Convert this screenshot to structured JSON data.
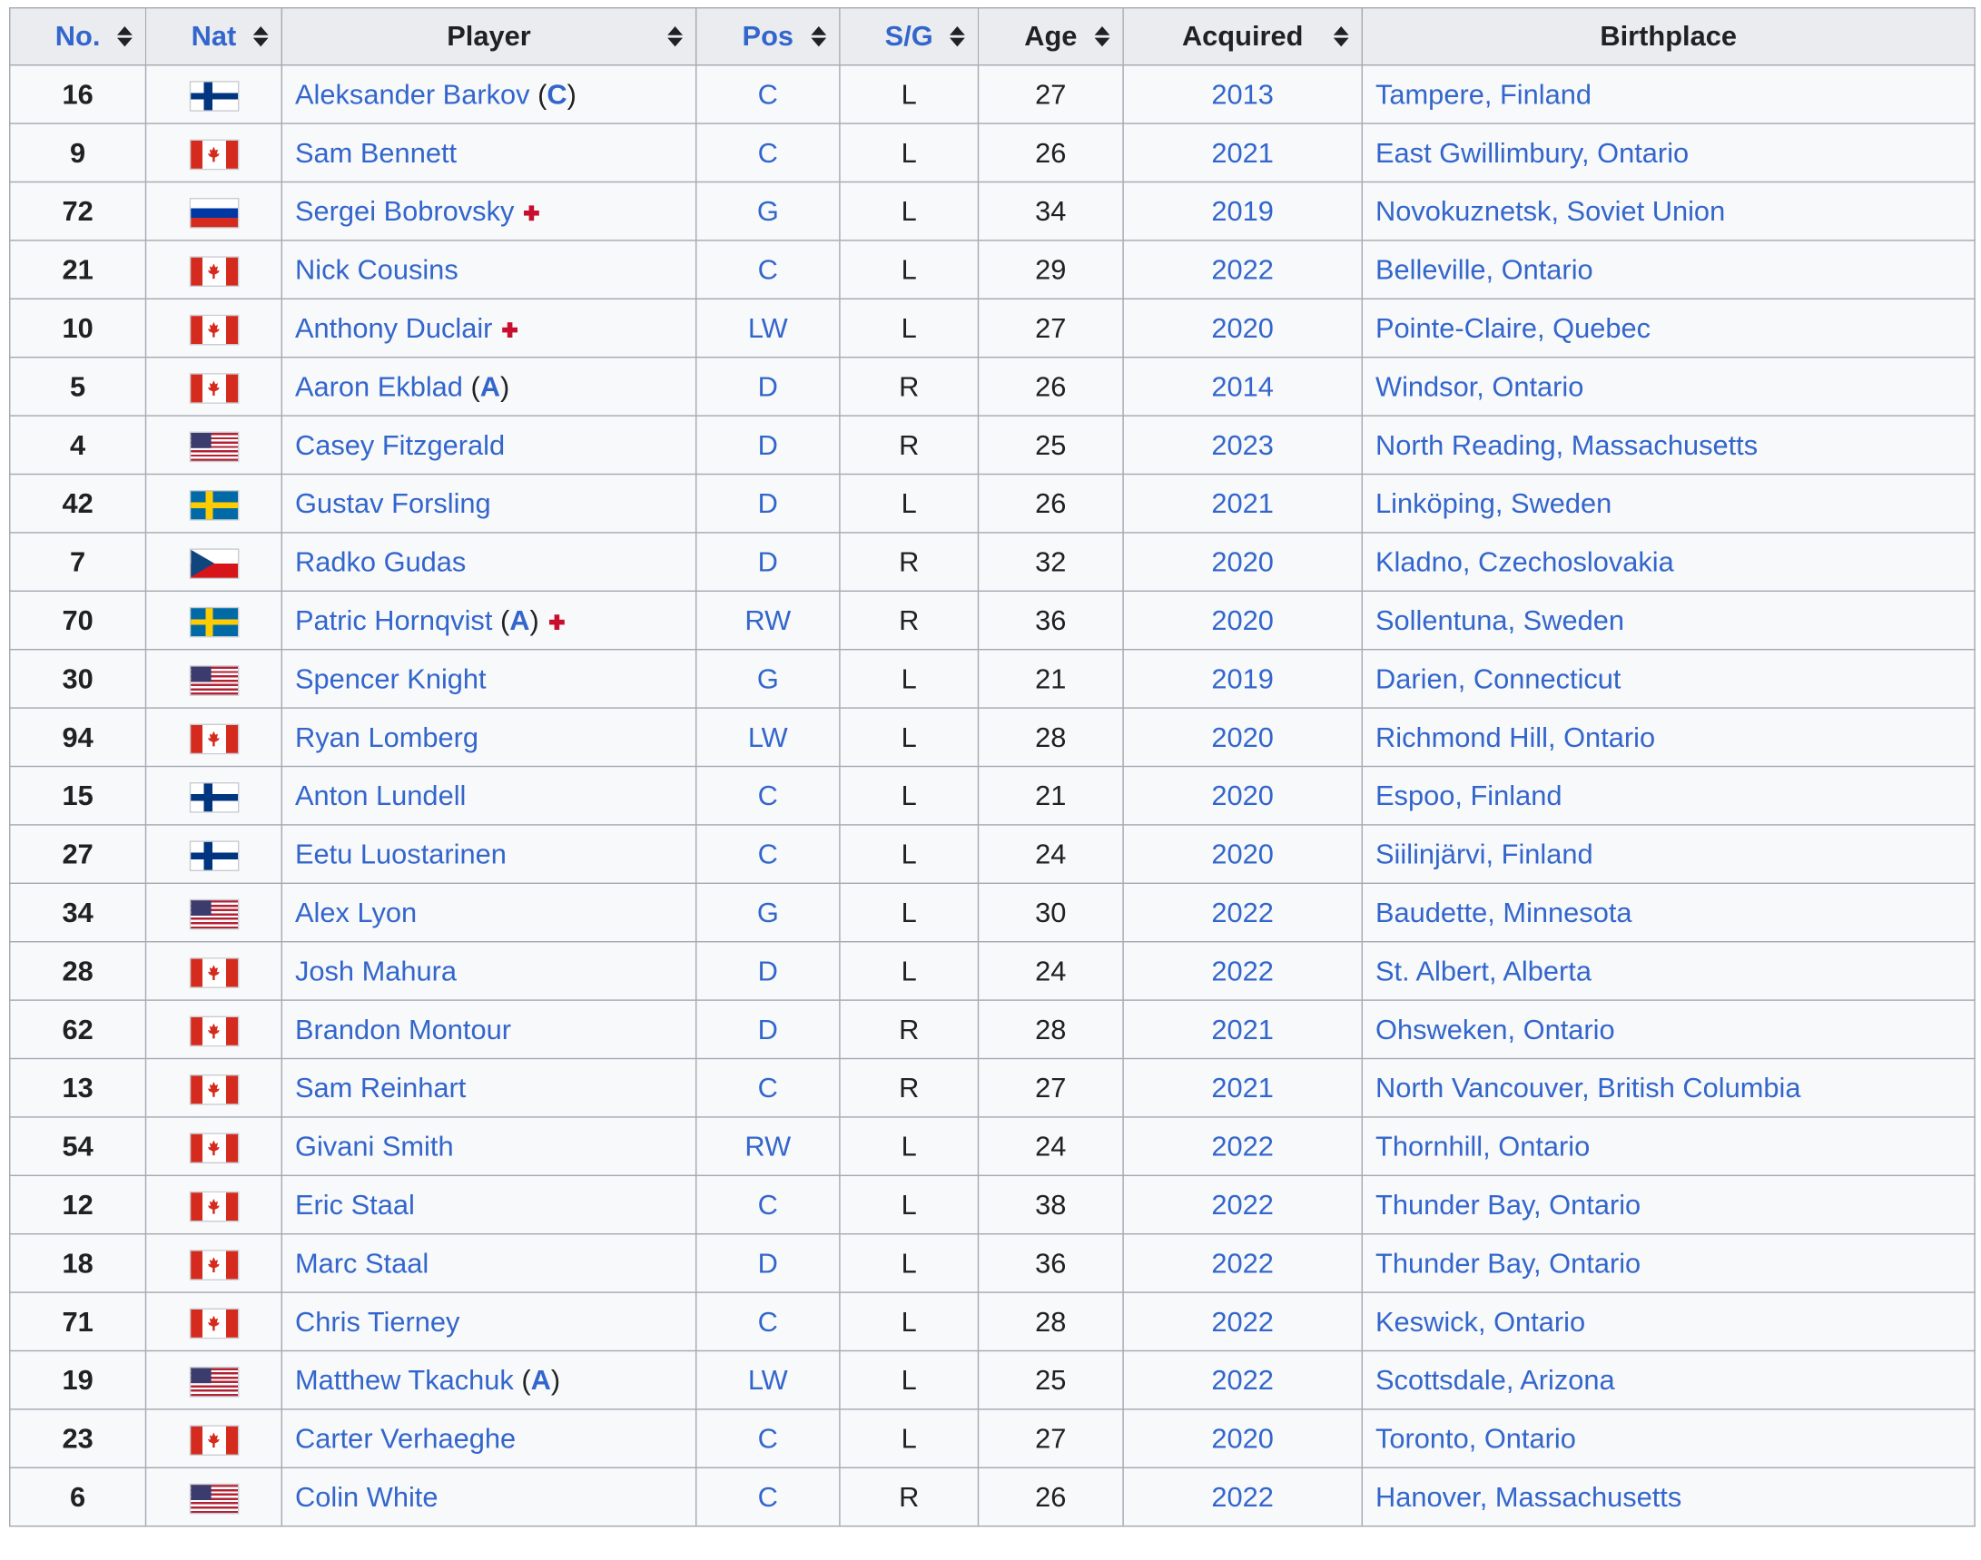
{
  "table": {
    "headers": {
      "no": "No.",
      "nat": "Nat",
      "player": "Player",
      "pos": "Pos",
      "sg": "S/G",
      "age": "Age",
      "acquired": "Acquired",
      "birthplace": "Birthplace"
    },
    "rows": [
      {
        "no": "16",
        "nat": "finland",
        "player": "Aleksander Barkov",
        "role": "C",
        "injured": false,
        "pos": "C",
        "sg": "L",
        "age": "27",
        "acquired": "2013",
        "birthplace": "Tampere, Finland"
      },
      {
        "no": "9",
        "nat": "canada",
        "player": "Sam Bennett",
        "role": "",
        "injured": false,
        "pos": "C",
        "sg": "L",
        "age": "26",
        "acquired": "2021",
        "birthplace": "East Gwillimbury, Ontario"
      },
      {
        "no": "72",
        "nat": "russia",
        "player": "Sergei Bobrovsky",
        "role": "",
        "injured": true,
        "pos": "G",
        "sg": "L",
        "age": "34",
        "acquired": "2019",
        "birthplace": "Novokuznetsk, Soviet Union"
      },
      {
        "no": "21",
        "nat": "canada",
        "player": "Nick Cousins",
        "role": "",
        "injured": false,
        "pos": "C",
        "sg": "L",
        "age": "29",
        "acquired": "2022",
        "birthplace": "Belleville, Ontario"
      },
      {
        "no": "10",
        "nat": "canada",
        "player": "Anthony Duclair",
        "role": "",
        "injured": true,
        "pos": "LW",
        "sg": "L",
        "age": "27",
        "acquired": "2020",
        "birthplace": "Pointe-Claire, Quebec"
      },
      {
        "no": "5",
        "nat": "canada",
        "player": "Aaron Ekblad",
        "role": "A",
        "injured": false,
        "pos": "D",
        "sg": "R",
        "age": "26",
        "acquired": "2014",
        "birthplace": "Windsor, Ontario"
      },
      {
        "no": "4",
        "nat": "usa",
        "player": "Casey Fitzgerald",
        "role": "",
        "injured": false,
        "pos": "D",
        "sg": "R",
        "age": "25",
        "acquired": "2023",
        "birthplace": "North Reading, Massachusetts"
      },
      {
        "no": "42",
        "nat": "sweden",
        "player": "Gustav Forsling",
        "role": "",
        "injured": false,
        "pos": "D",
        "sg": "L",
        "age": "26",
        "acquired": "2021",
        "birthplace": "Linköping, Sweden"
      },
      {
        "no": "7",
        "nat": "czech",
        "player": "Radko Gudas",
        "role": "",
        "injured": false,
        "pos": "D",
        "sg": "R",
        "age": "32",
        "acquired": "2020",
        "birthplace": "Kladno, Czechoslovakia"
      },
      {
        "no": "70",
        "nat": "sweden",
        "player": "Patric Hornqvist",
        "role": "A",
        "injured": true,
        "pos": "RW",
        "sg": "R",
        "age": "36",
        "acquired": "2020",
        "birthplace": "Sollentuna, Sweden"
      },
      {
        "no": "30",
        "nat": "usa",
        "player": "Spencer Knight",
        "role": "",
        "injured": false,
        "pos": "G",
        "sg": "L",
        "age": "21",
        "acquired": "2019",
        "birthplace": "Darien, Connecticut"
      },
      {
        "no": "94",
        "nat": "canada",
        "player": "Ryan Lomberg",
        "role": "",
        "injured": false,
        "pos": "LW",
        "sg": "L",
        "age": "28",
        "acquired": "2020",
        "birthplace": "Richmond Hill, Ontario"
      },
      {
        "no": "15",
        "nat": "finland",
        "player": "Anton Lundell",
        "role": "",
        "injured": false,
        "pos": "C",
        "sg": "L",
        "age": "21",
        "acquired": "2020",
        "birthplace": "Espoo, Finland"
      },
      {
        "no": "27",
        "nat": "finland",
        "player": "Eetu Luostarinen",
        "role": "",
        "injured": false,
        "pos": "C",
        "sg": "L",
        "age": "24",
        "acquired": "2020",
        "birthplace": "Siilinjärvi, Finland"
      },
      {
        "no": "34",
        "nat": "usa",
        "player": "Alex Lyon",
        "role": "",
        "injured": false,
        "pos": "G",
        "sg": "L",
        "age": "30",
        "acquired": "2022",
        "birthplace": "Baudette, Minnesota"
      },
      {
        "no": "28",
        "nat": "canada",
        "player": "Josh Mahura",
        "role": "",
        "injured": false,
        "pos": "D",
        "sg": "L",
        "age": "24",
        "acquired": "2022",
        "birthplace": "St. Albert, Alberta"
      },
      {
        "no": "62",
        "nat": "canada",
        "player": "Brandon Montour",
        "role": "",
        "injured": false,
        "pos": "D",
        "sg": "R",
        "age": "28",
        "acquired": "2021",
        "birthplace": "Ohsweken, Ontario"
      },
      {
        "no": "13",
        "nat": "canada",
        "player": "Sam Reinhart",
        "role": "",
        "injured": false,
        "pos": "C",
        "sg": "R",
        "age": "27",
        "acquired": "2021",
        "birthplace": "North Vancouver, British Columbia"
      },
      {
        "no": "54",
        "nat": "canada",
        "player": "Givani Smith",
        "role": "",
        "injured": false,
        "pos": "RW",
        "sg": "L",
        "age": "24",
        "acquired": "2022",
        "birthplace": "Thornhill, Ontario"
      },
      {
        "no": "12",
        "nat": "canada",
        "player": "Eric Staal",
        "role": "",
        "injured": false,
        "pos": "C",
        "sg": "L",
        "age": "38",
        "acquired": "2022",
        "birthplace": "Thunder Bay, Ontario"
      },
      {
        "no": "18",
        "nat": "canada",
        "player": "Marc Staal",
        "role": "",
        "injured": false,
        "pos": "D",
        "sg": "L",
        "age": "36",
        "acquired": "2022",
        "birthplace": "Thunder Bay, Ontario"
      },
      {
        "no": "71",
        "nat": "canada",
        "player": "Chris Tierney",
        "role": "",
        "injured": false,
        "pos": "C",
        "sg": "L",
        "age": "28",
        "acquired": "2022",
        "birthplace": "Keswick, Ontario"
      },
      {
        "no": "19",
        "nat": "usa",
        "player": "Matthew Tkachuk",
        "role": "A",
        "injured": false,
        "pos": "LW",
        "sg": "L",
        "age": "25",
        "acquired": "2022",
        "birthplace": "Scottsdale, Arizona"
      },
      {
        "no": "23",
        "nat": "canada",
        "player": "Carter Verhaeghe",
        "role": "",
        "injured": false,
        "pos": "C",
        "sg": "L",
        "age": "27",
        "acquired": "2020",
        "birthplace": "Toronto, Ontario"
      },
      {
        "no": "6",
        "nat": "usa",
        "player": "Colin White",
        "role": "",
        "injured": false,
        "pos": "C",
        "sg": "R",
        "age": "26",
        "acquired": "2022",
        "birthplace": "Hanover, Massachusetts"
      }
    ]
  }
}
